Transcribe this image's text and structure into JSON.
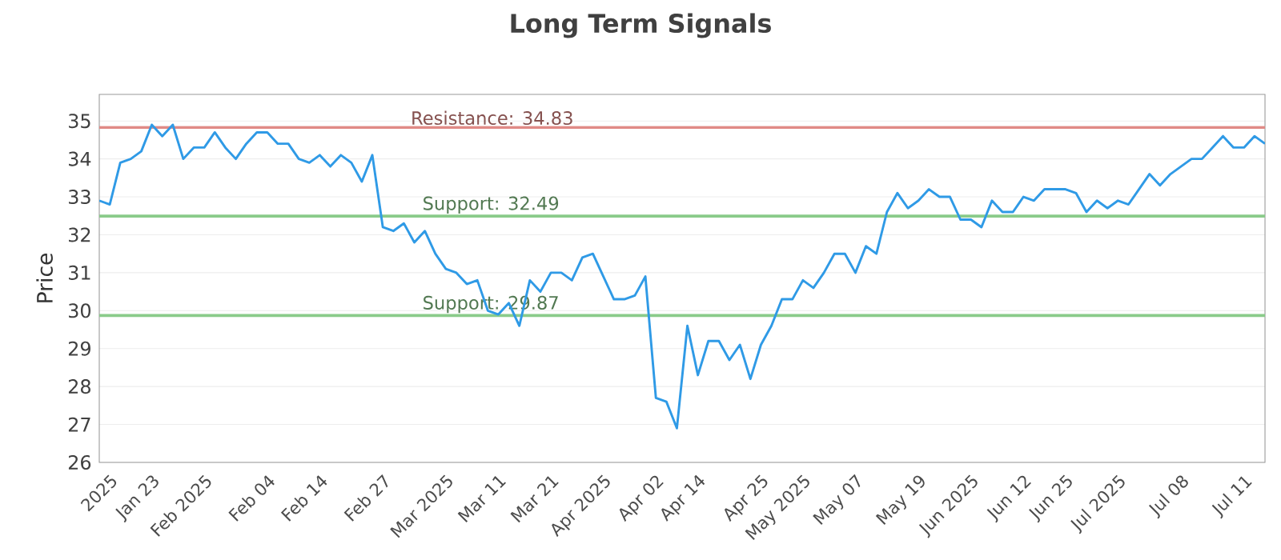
{
  "chart_data": {
    "type": "line",
    "title": "Long Term Signals",
    "ylabel": "Price",
    "categories": [
      null,
      "2025",
      null,
      null,
      null,
      "Jan 23",
      null,
      null,
      null,
      null,
      "Feb 2025",
      null,
      null,
      null,
      null,
      null,
      "Feb 04",
      null,
      null,
      null,
      null,
      "Feb 14",
      null,
      null,
      null,
      null,
      null,
      "Feb 27",
      null,
      null,
      null,
      null,
      null,
      "Mar 2025",
      null,
      null,
      null,
      null,
      "Mar 11",
      null,
      null,
      null,
      null,
      "Mar 21",
      null,
      null,
      null,
      null,
      "Apr 2025",
      null,
      null,
      null,
      null,
      "Apr 02",
      null,
      null,
      null,
      "Apr 14",
      null,
      null,
      null,
      null,
      null,
      "Apr 25",
      null,
      null,
      null,
      "May 2025",
      null,
      null,
      null,
      null,
      "May 07",
      null,
      null,
      null,
      null,
      null,
      "May 19",
      null,
      null,
      null,
      null,
      "Jun 2025",
      null,
      null,
      null,
      null,
      "Jun 12",
      null,
      null,
      null,
      "Jun 25",
      null,
      null,
      null,
      null,
      "Jul 2025",
      null,
      null,
      null,
      null,
      null,
      "Jul 08",
      null,
      null,
      null,
      null,
      null,
      "Jul 11",
      null,
      null
    ],
    "series": [
      {
        "color": "#2f9ae6",
        "values": [
          32.9,
          32.8,
          33.9,
          34.0,
          34.2,
          34.9,
          34.6,
          34.9,
          34.0,
          34.3,
          34.3,
          34.7,
          34.3,
          34.0,
          34.4,
          34.7,
          34.7,
          34.4,
          34.4,
          34.0,
          33.9,
          34.1,
          33.8,
          34.1,
          33.9,
          33.4,
          34.1,
          32.2,
          32.1,
          32.3,
          31.8,
          32.1,
          31.5,
          31.1,
          31.0,
          30.7,
          30.8,
          30.0,
          29.9,
          30.2,
          29.6,
          30.8,
          30.5,
          31.0,
          31.0,
          30.8,
          31.4,
          31.5,
          30.9,
          30.3,
          30.3,
          30.4,
          30.9,
          27.7,
          27.6,
          26.9,
          29.6,
          28.3,
          29.2,
          29.2,
          28.7,
          29.1,
          28.2,
          29.1,
          29.6,
          30.3,
          30.3,
          30.8,
          30.6,
          31.0,
          31.5,
          31.5,
          31.0,
          31.7,
          31.5,
          32.6,
          33.1,
          32.7,
          32.9,
          33.2,
          33.0,
          33.0,
          32.4,
          32.4,
          32.2,
          32.9,
          32.6,
          32.6,
          33.0,
          32.9,
          33.2,
          33.2,
          33.2,
          33.1,
          32.6,
          32.9,
          32.7,
          32.9,
          32.8,
          33.2,
          33.6,
          33.3,
          33.6,
          33.8,
          34.0,
          34.0,
          34.3,
          34.6,
          34.3,
          34.3,
          34.6,
          34.4
        ]
      }
    ],
    "ylim": [
      26,
      35.7
    ],
    "yticks": [
      26,
      27,
      28,
      29,
      30,
      31,
      32,
      33,
      34,
      35
    ],
    "grid": "y",
    "marker": "none",
    "line_style": "solid",
    "ref_lines": [
      {
        "axis": "y",
        "value": 34.83,
        "label": "Resistance: 34.83",
        "color": "#e08a86"
      },
      {
        "axis": "y",
        "value": 32.49,
        "label": "Support: 32.49",
        "color": "#8acb8a"
      },
      {
        "axis": "y",
        "value": 29.87,
        "label": "Support: 29.87",
        "color": "#8acb8a"
      }
    ]
  }
}
